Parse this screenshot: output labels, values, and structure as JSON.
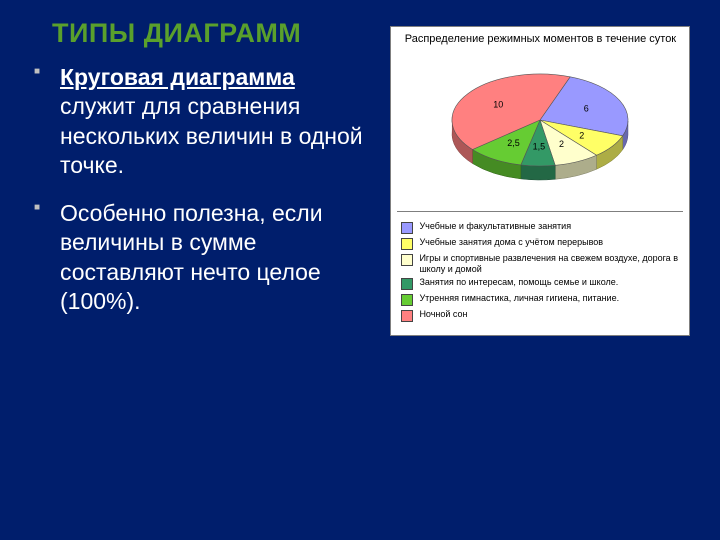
{
  "slide": {
    "background_color": "#001e6c",
    "heading": "ТИПЫ ДИАГРАММ",
    "heading_color": "#5aa02c",
    "text_color": "#ffffff",
    "bullet_color": "#c0c0c0",
    "bullets": [
      {
        "strong": "Круговая диаграмма",
        "rest": " служит для сравнения нескольких величин в одной точке."
      },
      {
        "strong": "",
        "rest": "Особенно полезна, если величины в сумме составляют нечто целое (100%)."
      }
    ]
  },
  "chart": {
    "type": "pie-3d",
    "card_background": "#ffffff",
    "title": "Распределение режимных моментов в течение суток",
    "title_fontsize": 11,
    "border_color": "#7f7f7f",
    "legend_border": "#7f7f7f",
    "label_fontsize": 9,
    "slices": [
      {
        "label": "Учебные и факультативные занятия",
        "value": 6,
        "text": "6",
        "color": "#9999ff"
      },
      {
        "label": "Учебные занятия дома с учётом перерывов",
        "value": 2,
        "text": "2",
        "color": "#ffff66"
      },
      {
        "label": "Игры и спортивные развлечения на свежем воздухе, дорога в школу и домой",
        "value": 2,
        "text": "2",
        "color": "#ffffcc"
      },
      {
        "label": "Занятия по интересам, помощь семье и школе.",
        "value": 1.5,
        "text": "1,5",
        "color": "#339966"
      },
      {
        "label": "Утренняя гимнастика, личная гигиена, питание.",
        "value": 2.5,
        "text": "2,5",
        "color": "#66cc33"
      },
      {
        "label": "Ночной сон",
        "value": 10,
        "text": "10",
        "color": "#ff8080"
      }
    ]
  }
}
